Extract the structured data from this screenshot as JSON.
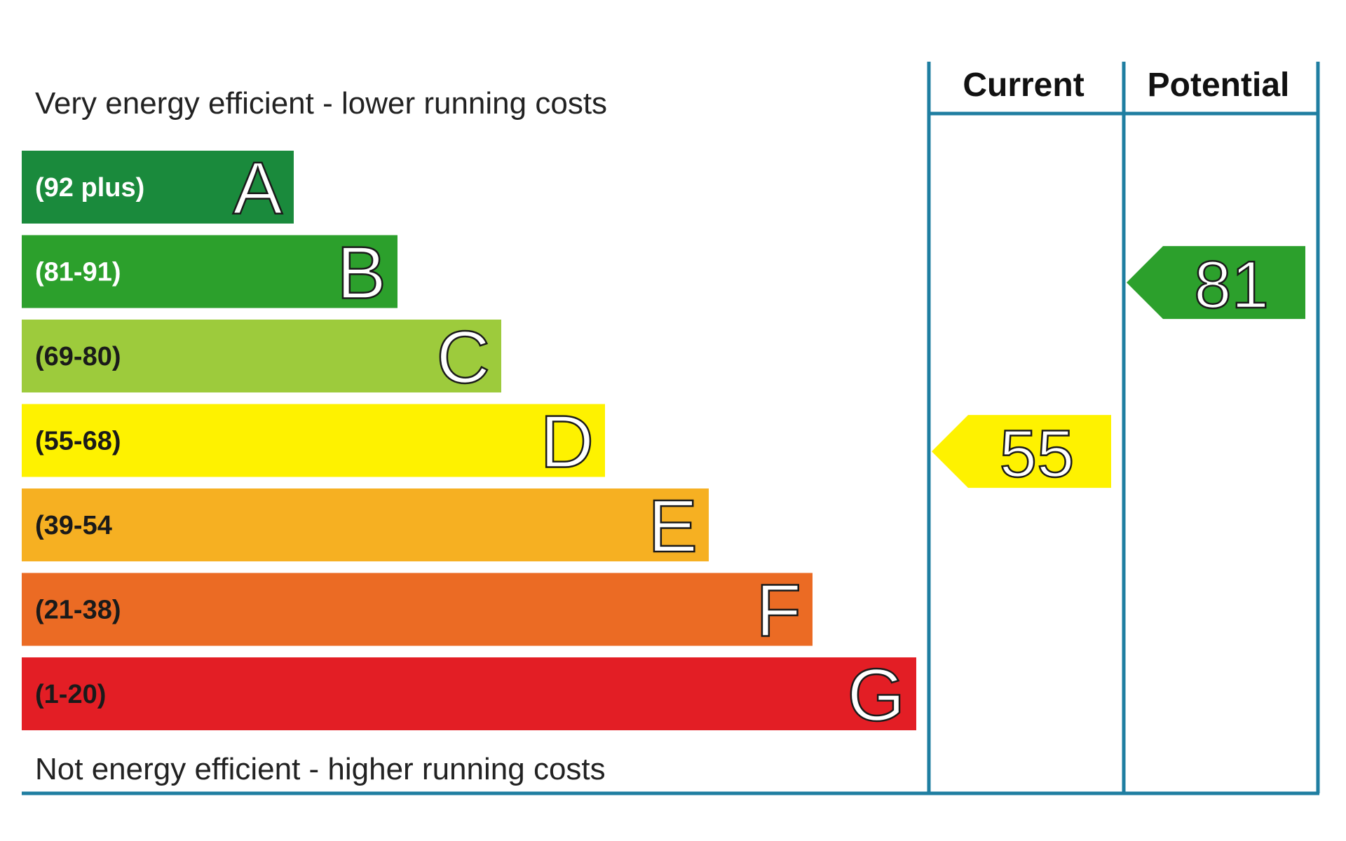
{
  "chart_data": {
    "type": "bar",
    "top_label": "Very energy efficient - lower running costs",
    "bottom_label": "Not energy efficient - higher running costs",
    "columns": [
      "Current",
      "Potential"
    ],
    "bands": [
      {
        "letter": "A",
        "range": "(92 plus)",
        "min": 92,
        "max": 100,
        "color": "#1a8a3c",
        "text_color": "#ffffff"
      },
      {
        "letter": "B",
        "range": "(81-91)",
        "min": 81,
        "max": 91,
        "color": "#2ca02c",
        "text_color": "#ffffff"
      },
      {
        "letter": "C",
        "range": "(69-80)",
        "min": 69,
        "max": 80,
        "color": "#9dcb3c",
        "text_color": "#1a1a1a"
      },
      {
        "letter": "D",
        "range": "(55-68)",
        "min": 55,
        "max": 68,
        "color": "#fef200",
        "text_color": "#1a1a1a"
      },
      {
        "letter": "E",
        "range": "(39-54",
        "min": 39,
        "max": 54,
        "color": "#f6b022",
        "text_color": "#1a1a1a"
      },
      {
        "letter": "F",
        "range": "(21-38)",
        "min": 21,
        "max": 38,
        "color": "#eb6b24",
        "text_color": "#1a1a1a"
      },
      {
        "letter": "G",
        "range": "(1-20)",
        "min": 1,
        "max": 20,
        "color": "#e31e25",
        "text_color": "#1a1a1a"
      }
    ],
    "current": {
      "value": 55,
      "band": "D",
      "color": "#fef200"
    },
    "potential": {
      "value": 81,
      "band": "B",
      "color": "#2ca02c"
    },
    "frame_color": "#1f7ea1"
  }
}
